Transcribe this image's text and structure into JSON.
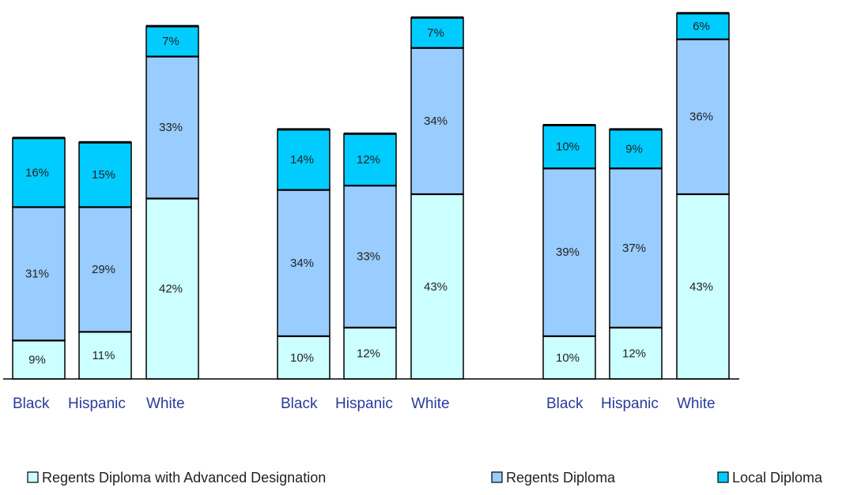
{
  "chart_data": {
    "type": "bar",
    "stacked": true,
    "title": "",
    "xlabel": "",
    "ylabel": "",
    "grid": false,
    "legend_position": "bottom",
    "groups": [
      {
        "categories": [
          "Black",
          "Hispanic",
          "White"
        ],
        "series": [
          {
            "name": "Regents Diploma with Advanced Designation",
            "values": [
              9,
              11,
              42
            ]
          },
          {
            "name": "Regents Diploma",
            "values": [
              31,
              29,
              33
            ]
          },
          {
            "name": "Local Diploma",
            "values": [
              16,
              15,
              7
            ]
          }
        ]
      },
      {
        "categories": [
          "Black",
          "Hispanic",
          "White"
        ],
        "series": [
          {
            "name": "Regents Diploma with Advanced Designation",
            "values": [
              10,
              12,
              43
            ]
          },
          {
            "name": "Regents Diploma",
            "values": [
              34,
              33,
              34
            ]
          },
          {
            "name": "Local Diploma",
            "values": [
              14,
              12,
              7
            ]
          }
        ]
      },
      {
        "categories": [
          "Black",
          "Hispanic",
          "White"
        ],
        "series": [
          {
            "name": "Regents Diploma with Advanced Designation",
            "values": [
              10,
              12,
              43
            ]
          },
          {
            "name": "Regents Diploma",
            "values": [
              39,
              37,
              36
            ]
          },
          {
            "name": "Local Diploma",
            "values": [
              10,
              9,
              6
            ]
          }
        ]
      }
    ],
    "legend": [
      "Regents Diploma with Advanced Designation",
      "Regents Diploma",
      "Local Diploma"
    ],
    "colors": {
      "Regents Diploma with Advanced Designation": "#ccffff",
      "Regents Diploma": "#99ccff",
      "Local Diploma": "#00ccff",
      "outline": "#000000",
      "category_text": "#2a3a9c"
    }
  }
}
